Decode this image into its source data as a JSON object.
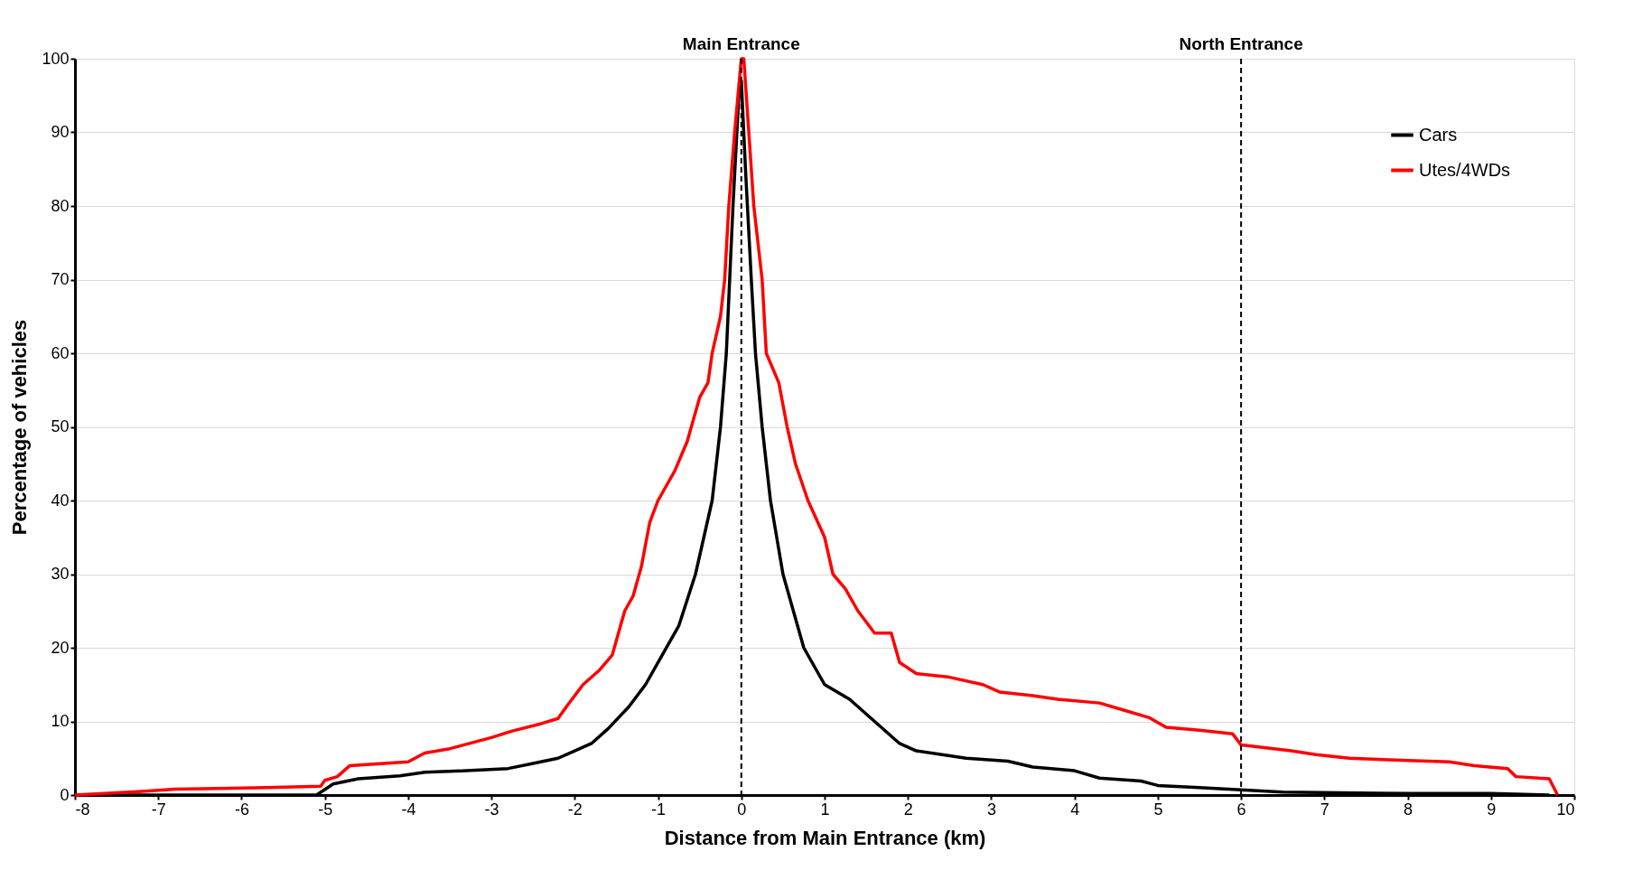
{
  "chart_data": {
    "type": "line",
    "xlabel": "Distance from Main Entrance (km)",
    "ylabel": "Percentage of vehicles",
    "xlim": [
      -8,
      10
    ],
    "xticks": [
      -8,
      -7,
      -6,
      -5,
      -4,
      -3,
      -2,
      -1,
      0,
      1,
      2,
      3,
      4,
      5,
      6,
      7,
      8,
      9,
      10
    ],
    "ylim": [
      0,
      100
    ],
    "yticks": [
      0,
      10,
      20,
      30,
      40,
      50,
      60,
      70,
      80,
      90,
      100
    ],
    "grid": "y",
    "legend": "top right",
    "marker": "none",
    "line_style": "solid",
    "ref_lines": [
      {
        "axis": "x",
        "value": 0,
        "label": "Main Entrance",
        "line_style": "dashed",
        "color": "#000000"
      },
      {
        "axis": "x",
        "value": 6,
        "label": "North Entrance",
        "line_style": "dashed",
        "color": "#000000"
      }
    ],
    "series": [
      {
        "name": "Cars",
        "color": "#000000",
        "x": [
          -8,
          -5.1,
          -4.9,
          -4.6,
          -4.1,
          -3.8,
          -3.3,
          -2.8,
          -2.5,
          -2.2,
          -2.0,
          -1.8,
          -1.6,
          -1.35,
          -1.15,
          -0.95,
          -0.75,
          -0.55,
          -0.35,
          -0.25,
          -0.18,
          -0.1,
          -0.03,
          0,
          0.05,
          0.12,
          0.17,
          0.25,
          0.35,
          0.5,
          0.75,
          1.0,
          1.3,
          1.6,
          1.9,
          2.1,
          2.7,
          3.2,
          3.5,
          4.0,
          4.3,
          4.8,
          5.0,
          5.5,
          6.0,
          6.5,
          8,
          9,
          9.7
        ],
        "values": [
          0,
          0,
          1.5,
          2.2,
          2.6,
          3.1,
          3.3,
          3.6,
          4.3,
          5,
          6,
          7,
          9,
          12,
          15,
          19,
          23,
          30,
          40,
          50,
          60,
          80,
          95,
          97,
          85,
          70,
          60,
          50,
          40,
          30,
          20,
          15,
          13,
          10,
          7,
          6,
          5,
          4.6,
          3.8,
          3.3,
          2.3,
          1.9,
          1.3,
          1.0,
          0.7,
          0.4,
          0.2,
          0.2,
          0
        ]
      },
      {
        "name": "Utes/4WDs",
        "color": "#ff0000",
        "x": [
          -8,
          -7.2,
          -6.8,
          -5.7,
          -5.05,
          -5,
          -4.85,
          -4.7,
          -4,
          -3.8,
          -3.5,
          -3,
          -2.75,
          -2.4,
          -2.2,
          -2.1,
          -1.9,
          -1.7,
          -1.55,
          -1.4,
          -1.3,
          -1.2,
          -1.1,
          -1.0,
          -0.8,
          -0.65,
          -0.5,
          -0.4,
          -0.35,
          -0.25,
          -0.2,
          -0.15,
          -0.08,
          0,
          0.03,
          0.15,
          0.25,
          0.3,
          0.45,
          0.55,
          0.65,
          0.8,
          1.0,
          1.1,
          1.25,
          1.4,
          1.6,
          1.8,
          1.9,
          2.1,
          2.5,
          2.9,
          3.1,
          3.5,
          3.8,
          4.3,
          4.6,
          4.9,
          5.1,
          5.5,
          5.9,
          6.0,
          6.6,
          6.9,
          7.3,
          8,
          8.5,
          8.8,
          9.2,
          9.3,
          9.7,
          9.8
        ],
        "values": [
          0,
          0.5,
          0.8,
          1,
          1.2,
          2,
          2.5,
          4,
          4.5,
          5.7,
          6.3,
          7.8,
          8.7,
          9.7,
          10.4,
          12,
          15,
          17,
          19,
          25,
          27,
          31,
          37,
          40,
          44,
          48,
          54,
          56,
          60,
          65,
          70,
          80,
          90,
          100,
          100,
          80,
          70,
          60,
          56,
          50,
          45,
          40,
          35,
          30,
          28,
          25,
          22,
          22,
          18,
          16.5,
          16,
          15,
          14,
          13.5,
          13,
          12.5,
          11.5,
          10.5,
          9.2,
          8.8,
          8.3,
          6.8,
          6,
          5.5,
          5,
          4.7,
          4.5,
          4,
          3.6,
          2.5,
          2.2,
          0
        ]
      }
    ]
  }
}
